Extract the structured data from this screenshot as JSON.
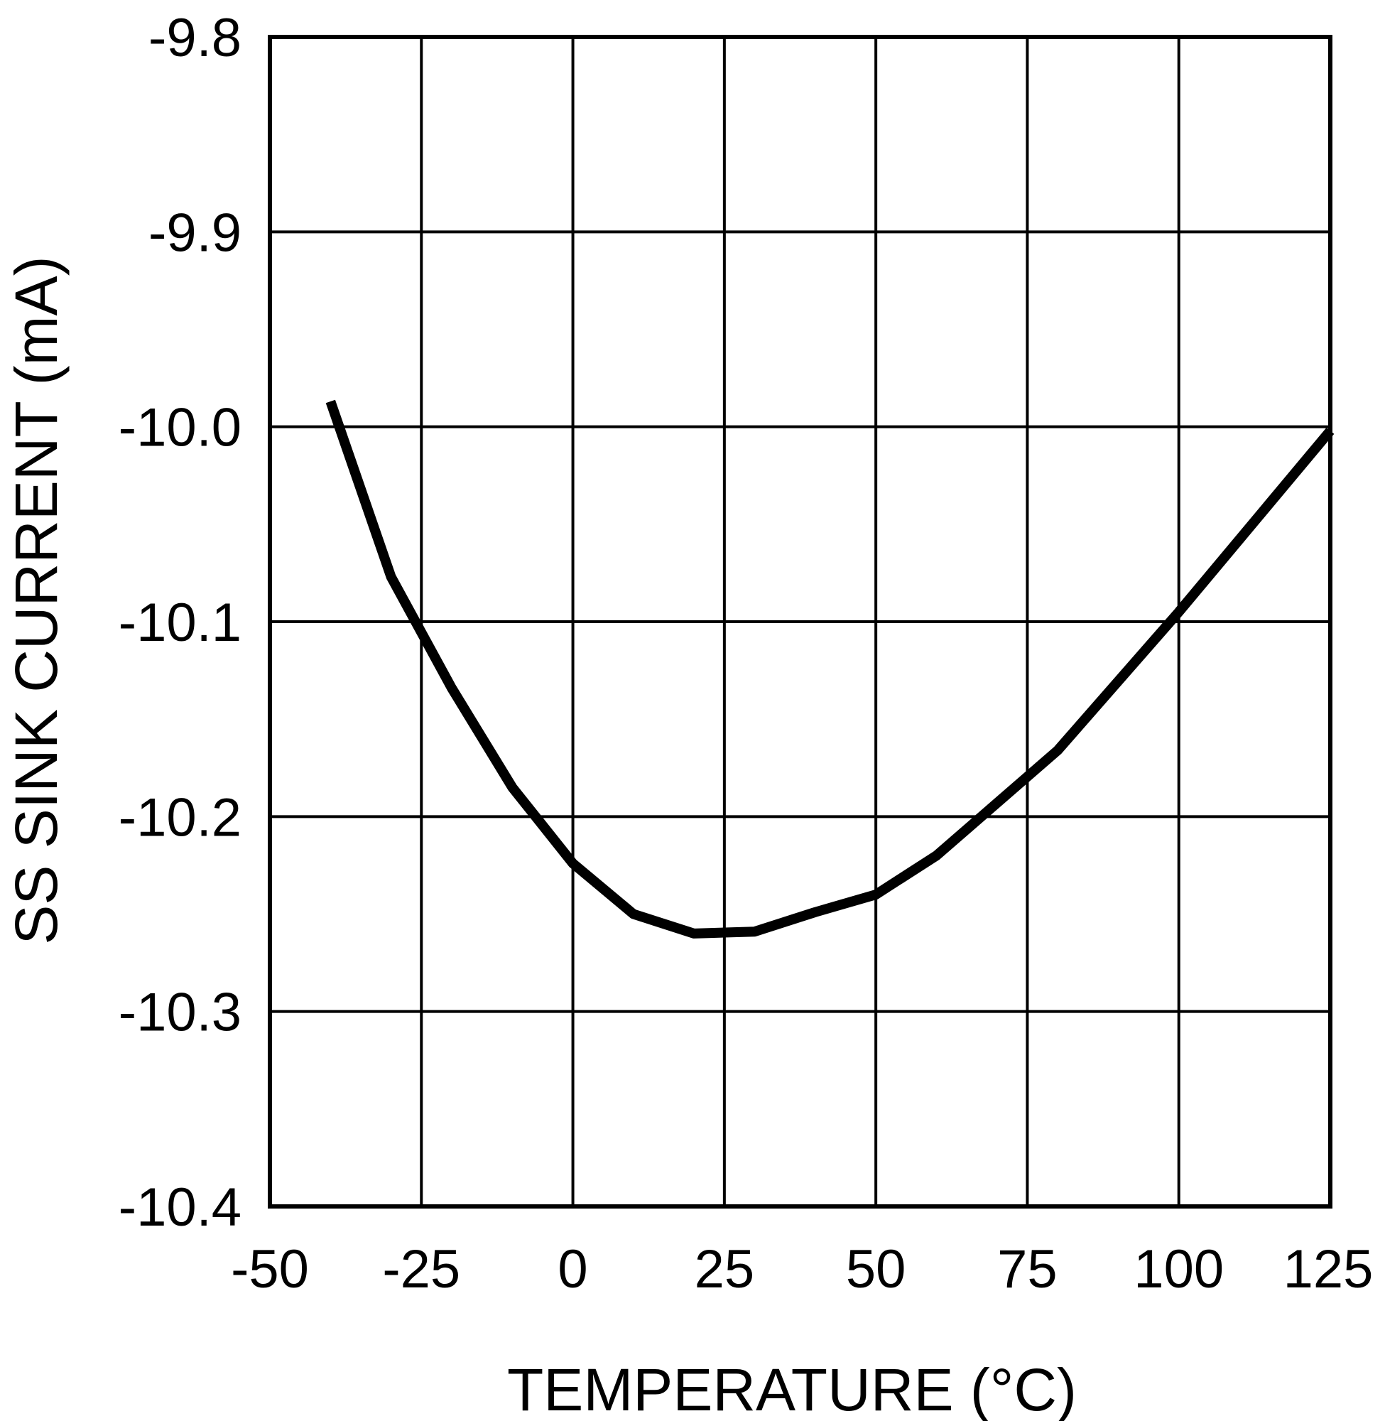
{
  "chart_data": {
    "type": "line",
    "title": "",
    "xlabel": "TEMPERATURE  (°C)",
    "ylabel": "SS SINK CURRENT  (mA)",
    "xlim": [
      -50,
      125
    ],
    "ylim": [
      -10.4,
      -9.8
    ],
    "xticks": [
      -50,
      -25,
      0,
      25,
      50,
      75,
      100,
      125
    ],
    "xtick_labels": [
      "-50",
      "-25",
      "0",
      "25",
      "50",
      "75",
      "100",
      "125"
    ],
    "yticks": [
      -9.8,
      -9.9,
      -10.0,
      -10.1,
      -10.2,
      -10.3,
      -10.4
    ],
    "ytick_labels": [
      "-9.8",
      "-9.9",
      "-10.0",
      "-10.1",
      "-10.2",
      "-10.3",
      "-10.4"
    ],
    "grid": true,
    "series": [
      {
        "name": "SS sink current",
        "color": "#000000",
        "x": [
          -40,
          -30,
          -20,
          -10,
          0,
          10,
          20,
          30,
          40,
          50,
          60,
          80,
          100,
          125
        ],
        "y": [
          -9.987,
          -10.077,
          -10.134,
          -10.185,
          -10.224,
          -10.25,
          -10.26,
          -10.259,
          -10.249,
          -10.24,
          -10.22,
          -10.166,
          -10.095,
          -10.002
        ]
      }
    ]
  }
}
